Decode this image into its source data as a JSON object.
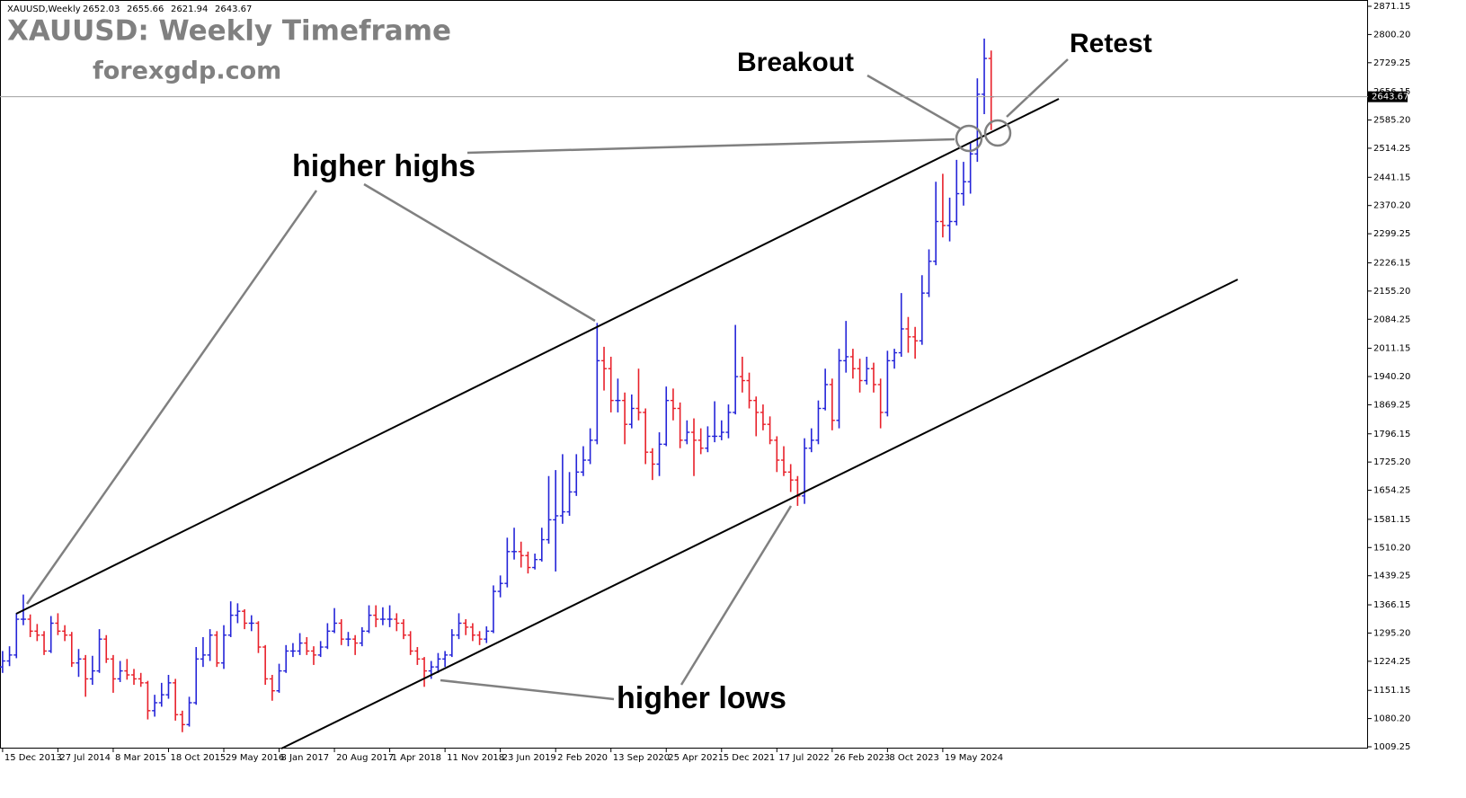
{
  "chart_data": {
    "type": "ohlc",
    "header": {
      "symbol": "XAUUSD,Weekly",
      "open": 2652.03,
      "high": 2655.66,
      "low": 2621.94,
      "close": 2643.67
    },
    "title": "XAUUSD: Weekly Timeframe",
    "subtitle": "forexgdp.com",
    "annotations": [
      "higher highs",
      "higher lows",
      "Breakout",
      "Retest"
    ],
    "current_price": 2643.67,
    "up_color": "#2424d8",
    "down_color": "#e8202a",
    "xlim": [
      -1.5,
      790.05
    ],
    "ylim": [
      1004.73,
      2886.97
    ],
    "xticks": [
      {
        "value": 0,
        "label": "15 Dec 2013"
      },
      {
        "value": 32,
        "label": "27 Jul 2014"
      },
      {
        "value": 64,
        "label": "8 Mar 2015"
      },
      {
        "value": 96,
        "label": "18 Oct 2015"
      },
      {
        "value": 128,
        "label": "29 May 2016"
      },
      {
        "value": 160,
        "label": "8 Jan 2017"
      },
      {
        "value": 192,
        "label": "20 Aug 2017"
      },
      {
        "value": 224,
        "label": "1 Apr 2018"
      },
      {
        "value": 256,
        "label": "11 Nov 2018"
      },
      {
        "value": 288,
        "label": "23 Jun 2019"
      },
      {
        "value": 320,
        "label": "2 Feb 2020"
      },
      {
        "value": 352,
        "label": "13 Sep 2020"
      },
      {
        "value": 384,
        "label": "25 Apr 2021"
      },
      {
        "value": 416,
        "label": "5 Dec 2021"
      },
      {
        "value": 448,
        "label": "17 Jul 2022"
      },
      {
        "value": 480,
        "label": "26 Feb 2023"
      },
      {
        "value": 512,
        "label": "8 Oct 2023"
      },
      {
        "value": 544,
        "label": "19 May 2024"
      }
    ],
    "yticks": [
      2871.15,
      {
        "value": 2800.2,
        "label": "2800.20"
      },
      2729.25,
      2656.15,
      {
        "value": 2585.2,
        "label": "2585.20"
      },
      2514.25,
      2441.15,
      {
        "value": 2370.2,
        "label": "2370.20"
      },
      2299.25,
      2226.15,
      {
        "value": 2155.2,
        "label": "2155.20"
      },
      2084.25,
      2011.15,
      {
        "value": 1940.2,
        "label": "1940.20"
      },
      1869.25,
      1796.15,
      {
        "value": 1725.2,
        "label": "1725.20"
      },
      1654.25,
      1581.15,
      {
        "value": 1510.2,
        "label": "1510.20"
      },
      1439.25,
      1366.15,
      {
        "value": 1295.2,
        "label": "1295.20"
      },
      1224.25,
      1151.15,
      {
        "value": 1080.2,
        "label": "1080.20"
      },
      1009.25
    ],
    "bars": [
      [
        0,
        1210,
        1250,
        1195,
        1225
      ],
      [
        4,
        1225,
        1262,
        1212,
        1240
      ],
      [
        8,
        1240,
        1345,
        1232,
        1330
      ],
      [
        12,
        1330,
        1392,
        1315,
        1330
      ],
      [
        16,
        1330,
        1342,
        1285,
        1300
      ],
      [
        20,
        1300,
        1318,
        1275,
        1290
      ],
      [
        24,
        1290,
        1300,
        1240,
        1250
      ],
      [
        28,
        1250,
        1338,
        1245,
        1320
      ],
      [
        32,
        1320,
        1345,
        1290,
        1300
      ],
      [
        36,
        1300,
        1315,
        1275,
        1290
      ],
      [
        40,
        1290,
        1298,
        1210,
        1220
      ],
      [
        44,
        1220,
        1255,
        1185,
        1230
      ],
      [
        48,
        1230,
        1240,
        1135,
        1180
      ],
      [
        52,
        1180,
        1238,
        1165,
        1200
      ],
      [
        56,
        1200,
        1305,
        1195,
        1280
      ],
      [
        60,
        1280,
        1290,
        1220,
        1230
      ],
      [
        64,
        1230,
        1240,
        1145,
        1180
      ],
      [
        68,
        1180,
        1225,
        1172,
        1200
      ],
      [
        72,
        1200,
        1230,
        1178,
        1190
      ],
      [
        76,
        1190,
        1205,
        1165,
        1180
      ],
      [
        80,
        1180,
        1195,
        1160,
        1170
      ],
      [
        84,
        1170,
        1175,
        1078,
        1100
      ],
      [
        88,
        1100,
        1140,
        1085,
        1120
      ],
      [
        92,
        1120,
        1170,
        1110,
        1140
      ],
      [
        96,
        1140,
        1190,
        1130,
        1170
      ],
      [
        100,
        1170,
        1180,
        1075,
        1090
      ],
      [
        104,
        1090,
        1100,
        1046,
        1065
      ],
      [
        108,
        1065,
        1135,
        1060,
        1120
      ],
      [
        112,
        1120,
        1260,
        1115,
        1230
      ],
      [
        116,
        1230,
        1285,
        1210,
        1240
      ],
      [
        120,
        1240,
        1305,
        1225,
        1290
      ],
      [
        124,
        1290,
        1300,
        1210,
        1220
      ],
      [
        128,
        1220,
        1315,
        1205,
        1290
      ],
      [
        132,
        1290,
        1375,
        1285,
        1340
      ],
      [
        136,
        1340,
        1370,
        1320,
        1350
      ],
      [
        140,
        1350,
        1355,
        1305,
        1320
      ],
      [
        144,
        1320,
        1340,
        1300,
        1320
      ],
      [
        148,
        1320,
        1325,
        1245,
        1260
      ],
      [
        152,
        1260,
        1265,
        1165,
        1180
      ],
      [
        156,
        1180,
        1190,
        1125,
        1150
      ],
      [
        160,
        1150,
        1218,
        1145,
        1200
      ],
      [
        164,
        1200,
        1265,
        1195,
        1250
      ],
      [
        168,
        1250,
        1270,
        1235,
        1250
      ],
      [
        172,
        1250,
        1295,
        1240,
        1270
      ],
      [
        176,
        1270,
        1285,
        1240,
        1250
      ],
      [
        180,
        1250,
        1262,
        1215,
        1240
      ],
      [
        184,
        1240,
        1275,
        1235,
        1260
      ],
      [
        188,
        1260,
        1320,
        1255,
        1300
      ],
      [
        192,
        1300,
        1358,
        1295,
        1320
      ],
      [
        196,
        1320,
        1330,
        1265,
        1280
      ],
      [
        200,
        1280,
        1298,
        1262,
        1280
      ],
      [
        204,
        1280,
        1290,
        1240,
        1270
      ],
      [
        208,
        1270,
        1310,
        1262,
        1300
      ],
      [
        212,
        1300,
        1365,
        1295,
        1340
      ],
      [
        216,
        1340,
        1365,
        1310,
        1330
      ],
      [
        220,
        1330,
        1360,
        1315,
        1330
      ],
      [
        224,
        1330,
        1365,
        1310,
        1330
      ],
      [
        228,
        1330,
        1345,
        1300,
        1320
      ],
      [
        232,
        1320,
        1330,
        1280,
        1290
      ],
      [
        236,
        1290,
        1300,
        1240,
        1250
      ],
      [
        240,
        1250,
        1260,
        1215,
        1230
      ],
      [
        244,
        1230,
        1235,
        1160,
        1200
      ],
      [
        248,
        1200,
        1225,
        1180,
        1210
      ],
      [
        252,
        1210,
        1245,
        1195,
        1230
      ],
      [
        256,
        1230,
        1250,
        1210,
        1240
      ],
      [
        260,
        1240,
        1305,
        1235,
        1290
      ],
      [
        264,
        1290,
        1345,
        1280,
        1320
      ],
      [
        268,
        1320,
        1330,
        1290,
        1310
      ],
      [
        272,
        1310,
        1320,
        1275,
        1290
      ],
      [
        276,
        1290,
        1300,
        1265,
        1280
      ],
      [
        280,
        1280,
        1312,
        1270,
        1300
      ],
      [
        284,
        1300,
        1415,
        1295,
        1400
      ],
      [
        288,
        1400,
        1440,
        1385,
        1420
      ],
      [
        292,
        1420,
        1535,
        1410,
        1500
      ],
      [
        296,
        1500,
        1560,
        1480,
        1500
      ],
      [
        300,
        1500,
        1525,
        1460,
        1490
      ],
      [
        304,
        1490,
        1500,
        1445,
        1460
      ],
      [
        308,
        1460,
        1495,
        1455,
        1480
      ],
      [
        312,
        1480,
        1560,
        1475,
        1530
      ],
      [
        316,
        1530,
        1690,
        1520,
        1580
      ],
      [
        320,
        1580,
        1705,
        1450,
        1590
      ],
      [
        324,
        1590,
        1745,
        1570,
        1600
      ],
      [
        328,
        1600,
        1700,
        1590,
        1650
      ],
      [
        332,
        1650,
        1745,
        1640,
        1700
      ],
      [
        336,
        1700,
        1765,
        1690,
        1730
      ],
      [
        340,
        1730,
        1810,
        1720,
        1780
      ],
      [
        344,
        1780,
        2075,
        1770,
        1980
      ],
      [
        348,
        1980,
        2015,
        1905,
        1960
      ],
      [
        352,
        1960,
        1990,
        1850,
        1880
      ],
      [
        356,
        1880,
        1935,
        1850,
        1880
      ],
      [
        360,
        1880,
        1900,
        1770,
        1820
      ],
      [
        364,
        1820,
        1895,
        1810,
        1860
      ],
      [
        368,
        1860,
        1960,
        1830,
        1850
      ],
      [
        372,
        1850,
        1860,
        1720,
        1750
      ],
      [
        376,
        1750,
        1760,
        1680,
        1720
      ],
      [
        380,
        1720,
        1800,
        1690,
        1770
      ],
      [
        384,
        1770,
        1915,
        1765,
        1880
      ],
      [
        388,
        1880,
        1910,
        1830,
        1860
      ],
      [
        392,
        1860,
        1875,
        1760,
        1780
      ],
      [
        396,
        1780,
        1830,
        1770,
        1800
      ],
      [
        400,
        1800,
        1835,
        1690,
        1780
      ],
      [
        404,
        1780,
        1810,
        1745,
        1760
      ],
      [
        408,
        1760,
        1815,
        1750,
        1790
      ],
      [
        412,
        1790,
        1878,
        1775,
        1790
      ],
      [
        416,
        1790,
        1830,
        1780,
        1800
      ],
      [
        420,
        1800,
        1870,
        1785,
        1850
      ],
      [
        424,
        1850,
        2070,
        1845,
        1940
      ],
      [
        428,
        1940,
        1990,
        1900,
        1930
      ],
      [
        432,
        1930,
        1950,
        1860,
        1880
      ],
      [
        436,
        1880,
        1890,
        1790,
        1850
      ],
      [
        440,
        1850,
        1870,
        1805,
        1820
      ],
      [
        444,
        1820,
        1840,
        1770,
        1780
      ],
      [
        448,
        1780,
        1790,
        1700,
        1730
      ],
      [
        452,
        1730,
        1765,
        1690,
        1700
      ],
      [
        456,
        1700,
        1720,
        1650,
        1680
      ],
      [
        460,
        1680,
        1690,
        1615,
        1640
      ],
      [
        464,
        1640,
        1785,
        1620,
        1760
      ],
      [
        468,
        1760,
        1810,
        1750,
        1780
      ],
      [
        472,
        1780,
        1880,
        1770,
        1860
      ],
      [
        476,
        1860,
        1960,
        1855,
        1920
      ],
      [
        480,
        1920,
        1935,
        1805,
        1830
      ],
      [
        484,
        1830,
        2010,
        1810,
        1980
      ],
      [
        488,
        1980,
        2080,
        1950,
        1990
      ],
      [
        492,
        1990,
        2010,
        1935,
        1960
      ],
      [
        496,
        1960,
        1985,
        1900,
        1930
      ],
      [
        500,
        1930,
        1990,
        1920,
        1960
      ],
      [
        504,
        1960,
        1975,
        1900,
        1920
      ],
      [
        508,
        1920,
        1935,
        1810,
        1850
      ],
      [
        512,
        1850,
        2005,
        1840,
        1980
      ],
      [
        516,
        1980,
        2010,
        1960,
        2000
      ],
      [
        520,
        2000,
        2150,
        1990,
        2060
      ],
      [
        524,
        2060,
        2090,
        2000,
        2040
      ],
      [
        528,
        2040,
        2065,
        1985,
        2030
      ],
      [
        532,
        2030,
        2195,
        2020,
        2150
      ],
      [
        536,
        2150,
        2260,
        2140,
        2230
      ],
      [
        540,
        2230,
        2430,
        2220,
        2330
      ],
      [
        544,
        2330,
        2450,
        2290,
        2320
      ],
      [
        548,
        2320,
        2390,
        2280,
        2330
      ],
      [
        552,
        2330,
        2485,
        2320,
        2400
      ],
      [
        556,
        2400,
        2480,
        2370,
        2430
      ],
      [
        560,
        2430,
        2530,
        2400,
        2500
      ],
      [
        564,
        2500,
        2690,
        2480,
        2650
      ],
      [
        568,
        2650,
        2790,
        2600,
        2740
      ],
      [
        572,
        2740,
        2760,
        2560,
        2643.67
      ]
    ]
  }
}
